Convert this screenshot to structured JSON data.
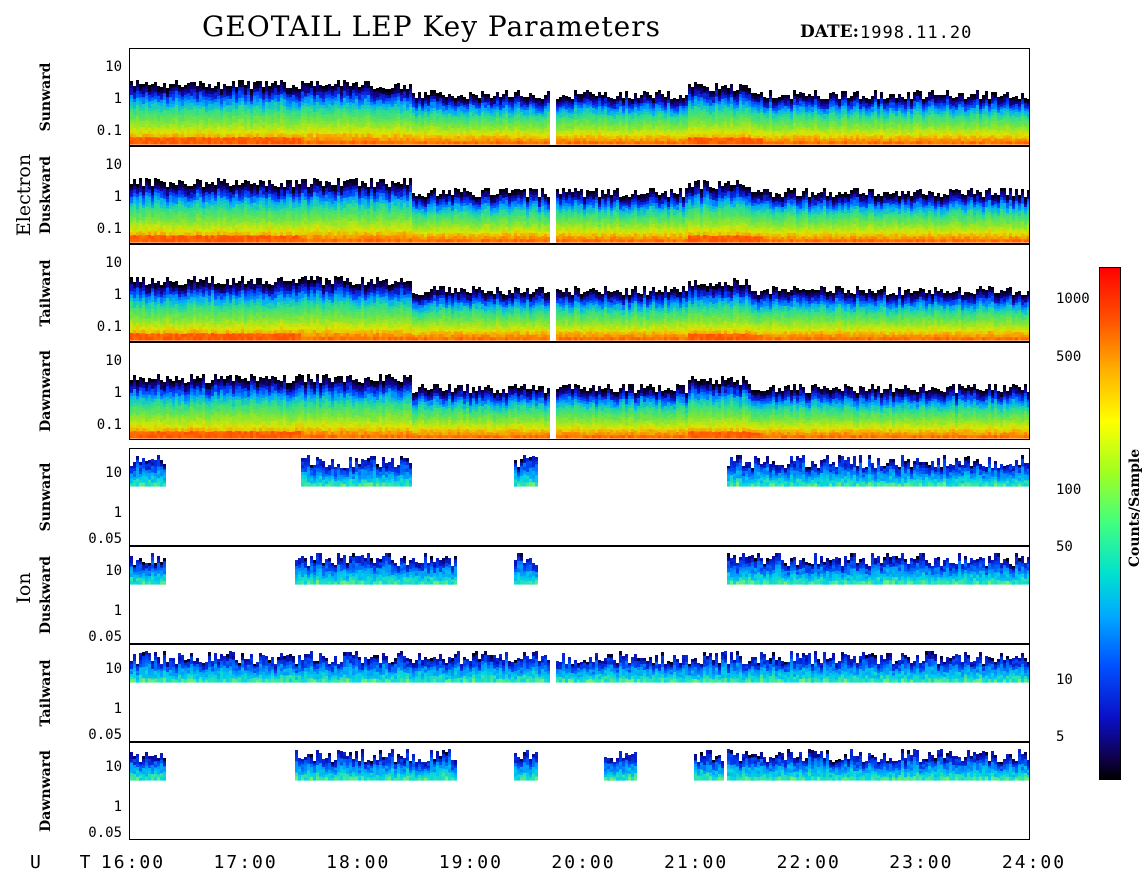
{
  "title": "GEOTAIL LEP Key Parameters",
  "date_label": "DATE:",
  "date_value": "1998.11.20",
  "ut_label": "U T",
  "colorbar_label": "Counts/Sample",
  "chart_data": {
    "type": "heatmap",
    "title": "GEOTAIL LEP Key Parameters",
    "x": {
      "label": "U T",
      "ticks": [
        "16:00",
        "17:00",
        "18:00",
        "19:00",
        "20:00",
        "21:00",
        "22:00",
        "23:00",
        "24:00"
      ],
      "range_hours": [
        16,
        24
      ]
    },
    "colorbar": {
      "label": "Counts/Sample",
      "scale": "log",
      "ticks": [
        1000,
        500,
        100,
        50,
        10,
        5
      ],
      "tick_labels": [
        "1000",
        "500",
        "100",
        "50",
        "10",
        "5"
      ],
      "range": [
        3,
        1500
      ]
    },
    "groups": [
      {
        "name": "Electron",
        "yticks": [
          "10",
          "1",
          "0.1"
        ],
        "panels": [
          "Sunward",
          "Duskward",
          "Tailward",
          "Dawnward"
        ]
      },
      {
        "name": "Ion",
        "yticks": [
          "10",
          "1",
          "0.05"
        ],
        "panels": [
          "Sunward",
          "Duskward",
          "Tailward",
          "Dawnward"
        ]
      }
    ],
    "data_gap_hour": 19.75
  }
}
